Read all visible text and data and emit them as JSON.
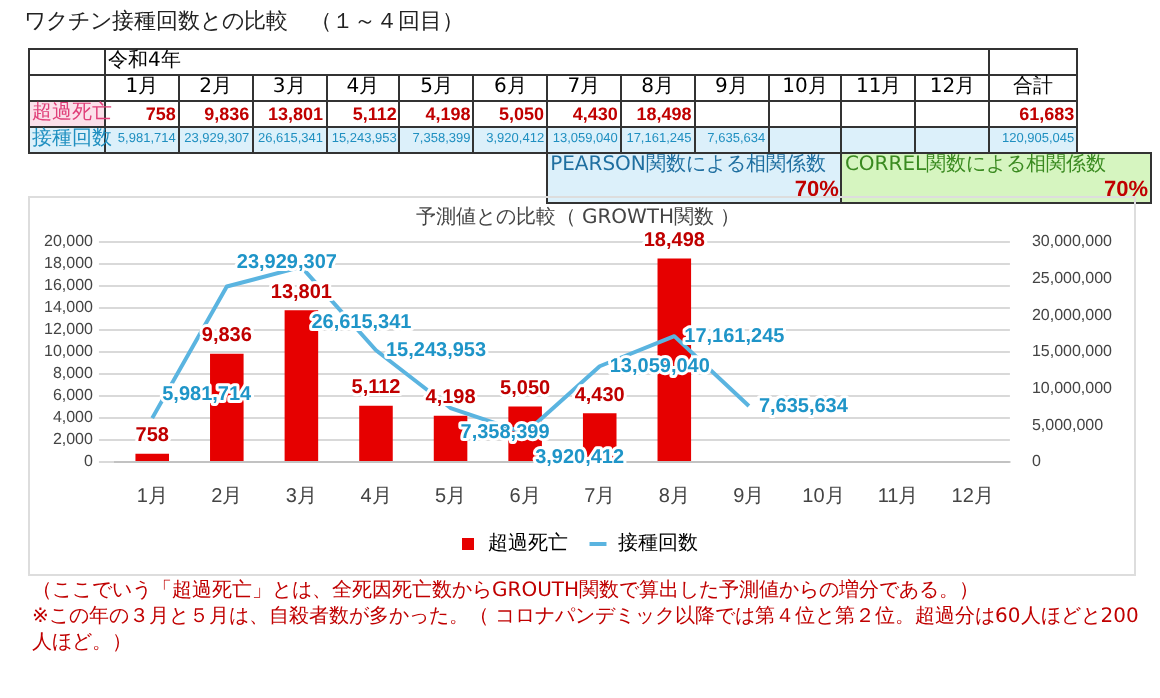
{
  "chart_data": {
    "type": "bar",
    "title": "ワクチン接種回数との比較　（１～４回目）",
    "subtitle": "予測値との比較（ GROWTH関数 ）",
    "categories": [
      "1月",
      "2月",
      "3月",
      "4月",
      "5月",
      "6月",
      "7月",
      "8月",
      "9月",
      "10月",
      "11月",
      "12月"
    ],
    "series": [
      {
        "name": "超過死亡",
        "color": "#e60000",
        "values": [
          758,
          9836,
          13801,
          5112,
          4198,
          5050,
          4430,
          18498,
          null,
          null,
          null,
          null
        ],
        "value_labels": [
          "758",
          "9,836",
          "13,801",
          "5,112",
          "4,198",
          "5,050",
          "4,430",
          "18,498",
          null,
          null,
          null,
          null
        ]
      },
      {
        "name": "接種回数",
        "type": "line",
        "axis": "y2",
        "color": "#5ab4e0",
        "values": [
          5981714,
          23929307,
          26615341,
          15243953,
          7358399,
          3920412,
          13059040,
          17161245,
          7635634,
          null,
          null,
          null
        ],
        "value_labels": [
          "5,981,714",
          "23,929,307",
          "26,615,341",
          "15,243,953",
          "7,358,399",
          "3,920,412",
          "13,059,040",
          "17,161,245",
          "7,635,634",
          null,
          null,
          null
        ]
      }
    ],
    "ylim": [
      0,
      20000
    ],
    "yticks": [
      {
        "value": 0,
        "label": "0"
      },
      {
        "value": 2000,
        "label": "2,000"
      },
      {
        "value": 4000,
        "label": "4,000"
      },
      {
        "value": 6000,
        "label": "6,000"
      },
      {
        "value": 8000,
        "label": "8,000"
      },
      {
        "value": 10000,
        "label": "10,000"
      },
      {
        "value": 12000,
        "label": "12,000"
      },
      {
        "value": 14000,
        "label": "14,000"
      },
      {
        "value": 16000,
        "label": "16,000"
      },
      {
        "value": 18000,
        "label": "18,000"
      },
      {
        "value": 20000,
        "label": "20,000"
      }
    ],
    "y2lim": [
      0,
      30000000
    ],
    "y2ticks": [
      {
        "value": 0,
        "label": "0"
      },
      {
        "value": 5000000,
        "label": "5,000,000"
      },
      {
        "value": 10000000,
        "label": "10,000,000"
      },
      {
        "value": 15000000,
        "label": "15,000,000"
      },
      {
        "value": 20000000,
        "label": "20,000,000"
      },
      {
        "value": 25000000,
        "label": "25,000,000"
      },
      {
        "value": 30000000,
        "label": "30,000,000"
      }
    ],
    "grid": "y",
    "legend": "bottom",
    "marker": "none",
    "annotations": [
      "令和4年",
      "合計",
      "61,683",
      "120,905,045",
      "PEARSON関数による相関係数",
      "70%",
      "CORREL関数による相関係数",
      "70%",
      "（ここでいう「超過死亡」とは、全死因死亡数からGROUTH関数で算出した予測値からの増分である。）",
      "※この年の３月と５月は、自殺者数が多かった。（ コロナパンデミック以降では第４位と第２位。超過分は60人ほどと200人ほど。）"
    ]
  }
}
